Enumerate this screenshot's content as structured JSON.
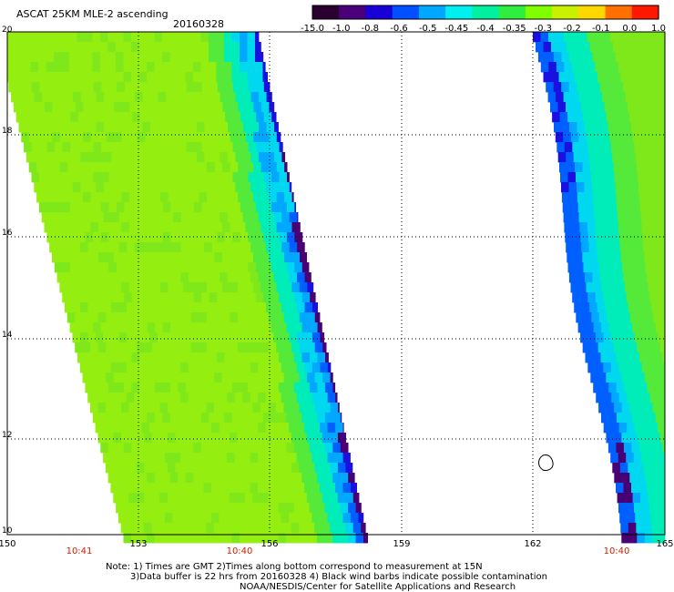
{
  "header": {
    "title": "ASCAT 25KM MLE-2 ascending",
    "date": "20160328"
  },
  "colorbar": {
    "labels": [
      "-15.0",
      "-1.0",
      "-0.8",
      "-0.6",
      "-0.5",
      "-0.45",
      "-0.4",
      "-0.35",
      "-0.3",
      "-0.2",
      "-0.1",
      "0.0",
      "1.0"
    ],
    "colors": [
      "#2a0030",
      "#4a007a",
      "#1800d8",
      "#0050ff",
      "#00a8ff",
      "#00f0f0",
      "#00f0a0",
      "#30ee40",
      "#80ff00",
      "#c8f000",
      "#ffd800",
      "#ff7000",
      "#ff1800"
    ]
  },
  "axes": {
    "lon_labels": [
      "150",
      "153",
      "156",
      "159",
      "162",
      "165"
    ],
    "lat_labels": [
      "20",
      "18",
      "16",
      "14",
      "12",
      "10"
    ],
    "time_labels": [
      "10:41",
      "10:40",
      "10:40"
    ],
    "time_color": "#cc2200"
  },
  "notes": [
    "Note: 1) Times are GMT 2)Times along bottom correspond to measurement at 15N",
    "3)Data buffer is 22 hrs from 20160328 4) Black wind barbs indicate possible contamination",
    "NOAA/NESDIS/Center for Satellite Applications and Research"
  ]
}
